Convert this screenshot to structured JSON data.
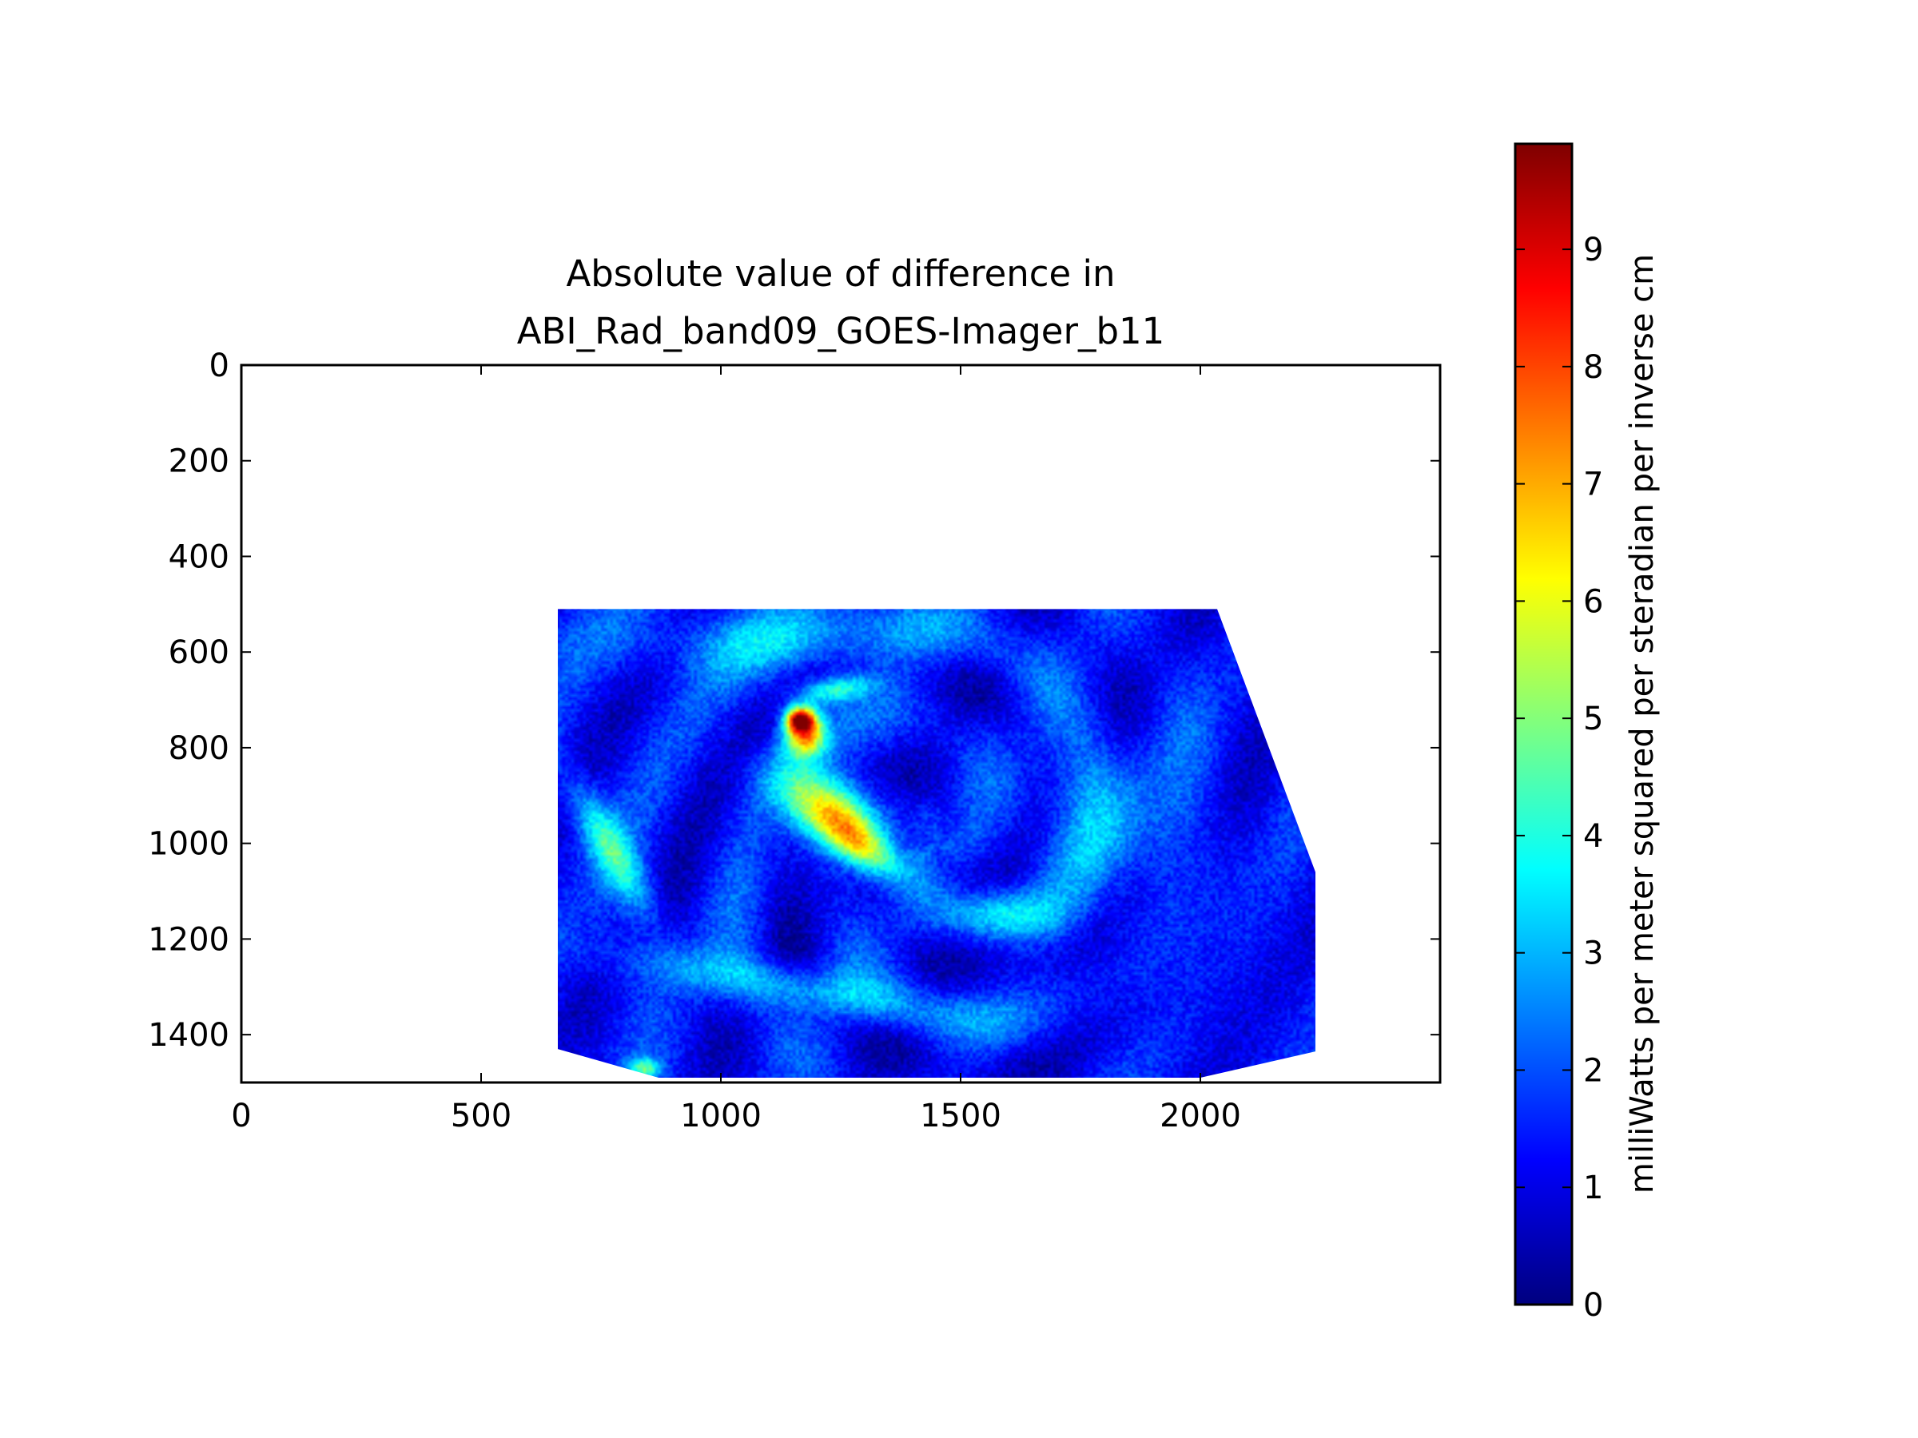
{
  "chart_data": {
    "type": "heatmap",
    "title_lines": [
      "Absolute value of difference in",
      "ABI_Rad_band09_GOES-Imager_b11"
    ],
    "xlabel": "",
    "ylabel": "",
    "xlim": [
      0,
      2500
    ],
    "ylim": [
      1500,
      0
    ],
    "x_ticks": [
      0,
      500,
      1000,
      1500,
      2000
    ],
    "y_ticks": [
      0,
      200,
      400,
      600,
      800,
      1000,
      1200,
      1400
    ],
    "y_axis_inverted": true,
    "grid": false,
    "colormap": "jet",
    "colorbar": {
      "label": "milliWatts per meter squared per steradian per inverse cm",
      "range": [
        0,
        9.9
      ],
      "ticks": [
        0,
        1,
        2,
        3,
        4,
        5,
        6,
        7,
        8,
        9
      ],
      "placement": "right"
    },
    "data_region": {
      "description": "valid-data polygon in data units (x, y)",
      "polygon": [
        [
          660,
          510
        ],
        [
          2035,
          510
        ],
        [
          2240,
          1060
        ],
        [
          2240,
          1435
        ],
        [
          2000,
          1490
        ],
        [
          870,
          1490
        ],
        [
          660,
          1430
        ]
      ]
    },
    "background_value": 1.3,
    "features": [
      {
        "name": "hotspot",
        "x": 1165,
        "y": 740,
        "value": 9.2,
        "sx": 22,
        "sy": 18
      },
      {
        "name": "hotspot-ring",
        "x": 1175,
        "y": 775,
        "value": 7.0,
        "sx": 30,
        "sy": 30
      },
      {
        "name": "warm-streak",
        "x": 1225,
        "y": 930,
        "value": 6.3,
        "sx": 90,
        "sy": 45,
        "angle": 35
      },
      {
        "name": "warm-streak-tail",
        "x": 1300,
        "y": 1010,
        "value": 4.8,
        "sx": 70,
        "sy": 30,
        "angle": 35
      },
      {
        "name": "arc-top",
        "x": 1230,
        "y": 680,
        "value": 4.5,
        "sx": 60,
        "sy": 20,
        "angle": -10
      },
      {
        "name": "cyan-patch",
        "x": 1580,
        "y": 1150,
        "value": 3.6,
        "sx": 90,
        "sy": 35
      },
      {
        "name": "left-band",
        "x": 770,
        "y": 1010,
        "value": 4.2,
        "sx": 30,
        "sy": 120,
        "angle": -30
      },
      {
        "name": "bottom-band",
        "x": 1150,
        "y": 1300,
        "value": 3.3,
        "sx": 250,
        "sy": 35,
        "angle": 10
      },
      {
        "name": "upper-haze",
        "x": 1150,
        "y": 580,
        "value": 3.0,
        "sx": 260,
        "sy": 55
      },
      {
        "name": "right-haze",
        "x": 1800,
        "y": 950,
        "value": 2.8,
        "sx": 120,
        "sy": 130
      },
      {
        "name": "bottom-left-spot",
        "x": 840,
        "y": 1470,
        "value": 4.6,
        "sx": 25,
        "sy": 15
      }
    ]
  },
  "colors": {
    "jet_stops": [
      "#00007f",
      "#0000ff",
      "#007fff",
      "#00ffff",
      "#7fff7f",
      "#ffff00",
      "#ff7f00",
      "#ff0000",
      "#7f0000"
    ],
    "axis": "#000000",
    "background": "#ffffff"
  }
}
